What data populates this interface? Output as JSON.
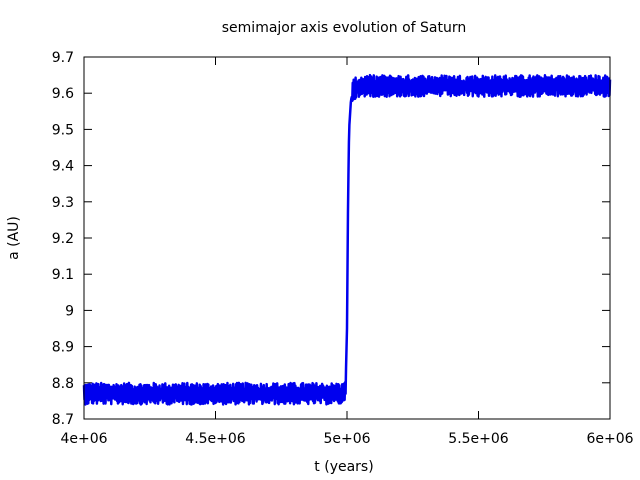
{
  "chart_data": {
    "type": "line",
    "title": "semimajor axis evolution of Saturn",
    "xlabel": "t (years)",
    "ylabel": "a (AU)",
    "xlim": [
      4000000,
      6000000
    ],
    "ylim": [
      8.7,
      9.7
    ],
    "grid": false,
    "legend": "none",
    "x_ticks": [
      {
        "value": 4000000,
        "label": "4e+06"
      },
      {
        "value": 4500000,
        "label": "4.5e+06"
      },
      {
        "value": 5000000,
        "label": "5e+06"
      },
      {
        "value": 5500000,
        "label": "5.5e+06"
      },
      {
        "value": 6000000,
        "label": "6e+06"
      }
    ],
    "y_ticks": [
      {
        "value": 8.7,
        "label": "8.7"
      },
      {
        "value": 8.8,
        "label": "8.8"
      },
      {
        "value": 8.9,
        "label": "8.9"
      },
      {
        "value": 9.0,
        "label": "9"
      },
      {
        "value": 9.1,
        "label": "9.1"
      },
      {
        "value": 9.2,
        "label": "9.2"
      },
      {
        "value": 9.3,
        "label": "9.3"
      },
      {
        "value": 9.4,
        "label": "9.4"
      },
      {
        "value": 9.5,
        "label": "9.5"
      },
      {
        "value": 9.6,
        "label": "9.6"
      },
      {
        "value": 9.7,
        "label": "9.7"
      }
    ],
    "series": [
      {
        "color": "#0000ee",
        "points": [
          [
            4000000,
            8.77
          ],
          [
            4250000,
            8.77
          ],
          [
            4500000,
            8.77
          ],
          [
            4750000,
            8.77
          ],
          [
            4990000,
            8.77
          ],
          [
            4995000,
            8.8
          ],
          [
            5000000,
            8.95
          ],
          [
            5004000,
            9.3
          ],
          [
            5008000,
            9.5
          ],
          [
            5015000,
            9.58
          ],
          [
            5025000,
            9.61
          ],
          [
            5050000,
            9.62
          ],
          [
            5250000,
            9.62
          ],
          [
            5500000,
            9.62
          ],
          [
            5750000,
            9.62
          ],
          [
            6000000,
            9.62
          ]
        ],
        "oscillation_amplitude_before": 0.03,
        "oscillation_amplitude_after": 0.03
      }
    ]
  }
}
